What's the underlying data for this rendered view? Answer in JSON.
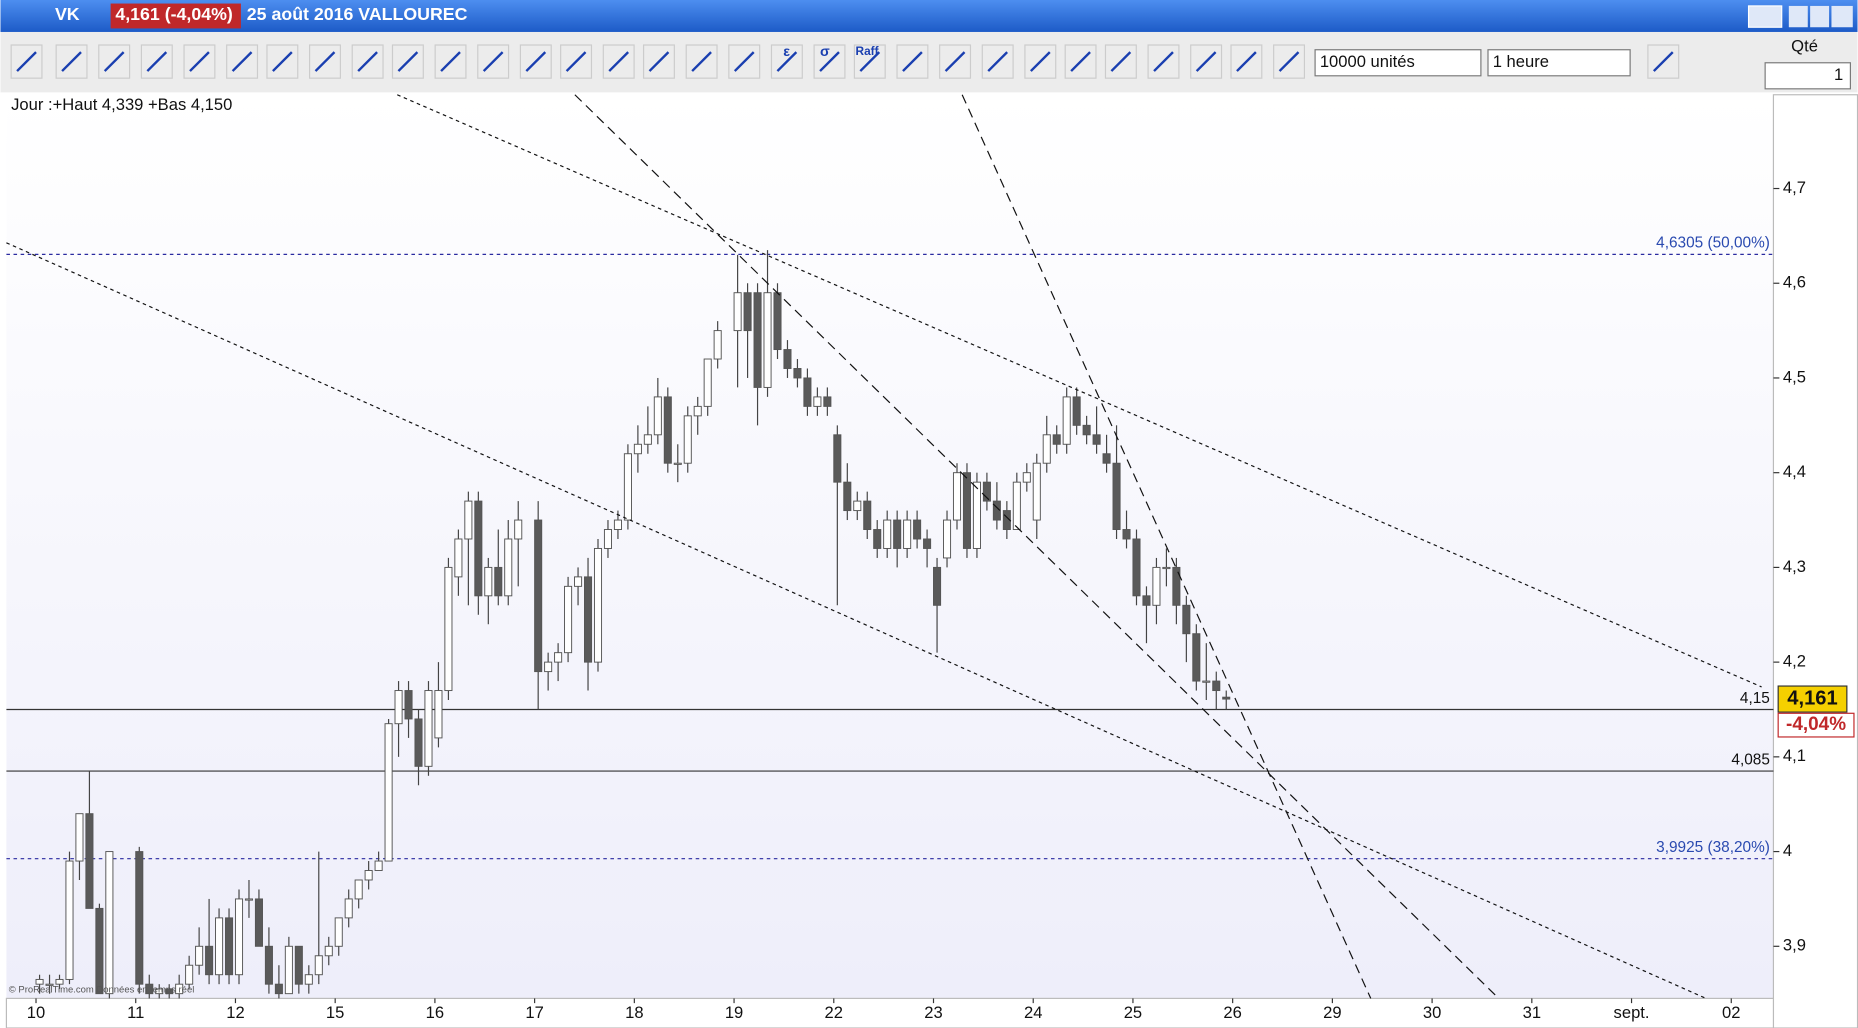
{
  "ui": {
    "symbol": "VK",
    "quote": "4,161 (-4,04%)",
    "heading": "25 août 2016 VALLOUREC",
    "quantity_select": "10000 unités",
    "period_select": "1 heure",
    "qty_label": "Qté",
    "qty_value": "1",
    "tool_labels": [
      "ε",
      "σ",
      "Raff"
    ],
    "info_line": "Jour :+Haut 4,339 +Bas 4,150",
    "footer": "© ProRealTime.com  Données en temps réel"
  },
  "chart_data": {
    "type": "candlestick",
    "categories": [
      "10",
      "11",
      "12",
      "15",
      "16",
      "17",
      "18",
      "19",
      "22",
      "23",
      "24",
      "25",
      "26",
      "29",
      "30",
      "31",
      "sept.",
      "02"
    ],
    "ohlc": [
      [
        [
          3.86,
          3.87,
          3.85,
          3.865
        ],
        [
          3.86,
          3.87,
          3.85,
          3.86
        ],
        [
          3.86,
          3.87,
          3.855,
          3.865
        ],
        [
          3.865,
          4.0,
          3.86,
          3.99
        ],
        [
          3.99,
          4.04,
          3.97,
          4.04
        ],
        [
          4.04,
          4.085,
          3.94,
          3.94
        ],
        [
          3.94,
          3.945,
          3.85,
          3.85
        ],
        [
          3.85,
          4.0,
          3.845,
          4.0
        ]
      ],
      [
        [
          4.0,
          4.005,
          3.85,
          3.86
        ],
        [
          3.86,
          3.87,
          3.845,
          3.85
        ],
        [
          3.85,
          3.86,
          3.845,
          3.855
        ],
        [
          3.855,
          3.86,
          3.845,
          3.85
        ],
        [
          3.85,
          3.87,
          3.845,
          3.86
        ],
        [
          3.86,
          3.89,
          3.855,
          3.88
        ],
        [
          3.88,
          3.92,
          3.87,
          3.9
        ],
        [
          3.9,
          3.95,
          3.86,
          3.87
        ],
        [
          3.87,
          3.94,
          3.86,
          3.93
        ],
        [
          3.93,
          3.94,
          3.86,
          3.87
        ]
      ],
      [
        [
          3.87,
          3.96,
          3.86,
          3.95
        ],
        [
          3.95,
          3.97,
          3.93,
          3.95
        ],
        [
          3.95,
          3.96,
          3.9,
          3.9
        ],
        [
          3.9,
          3.92,
          3.85,
          3.86
        ],
        [
          3.86,
          3.88,
          3.845,
          3.85
        ],
        [
          3.85,
          3.91,
          3.85,
          3.9
        ],
        [
          3.9,
          3.9,
          3.85,
          3.86
        ],
        [
          3.86,
          3.88,
          3.85,
          3.87
        ],
        [
          3.87,
          4.0,
          3.86,
          3.89
        ],
        [
          3.89,
          3.91,
          3.88,
          3.9
        ]
      ],
      [
        [
          3.9,
          3.93,
          3.89,
          3.93
        ],
        [
          3.93,
          3.96,
          3.92,
          3.95
        ],
        [
          3.95,
          3.97,
          3.94,
          3.97
        ],
        [
          3.97,
          3.99,
          3.96,
          3.98
        ],
        [
          3.98,
          4.0,
          3.98,
          3.99
        ],
        [
          3.99,
          4.14,
          3.99,
          4.135
        ],
        [
          4.135,
          4.18,
          4.1,
          4.17
        ],
        [
          4.17,
          4.18,
          4.12,
          4.14
        ],
        [
          4.14,
          4.15,
          4.07,
          4.09
        ],
        [
          4.09,
          4.18,
          4.08,
          4.17
        ]
      ],
      [
        [
          4.12,
          4.2,
          4.11,
          4.17
        ],
        [
          4.17,
          4.31,
          4.16,
          4.3
        ],
        [
          4.29,
          4.34,
          4.27,
          4.33
        ],
        [
          4.33,
          4.38,
          4.26,
          4.37
        ],
        [
          4.37,
          4.38,
          4.25,
          4.27
        ],
        [
          4.27,
          4.31,
          4.24,
          4.3
        ],
        [
          4.3,
          4.34,
          4.26,
          4.27
        ],
        [
          4.27,
          4.35,
          4.26,
          4.33
        ],
        [
          4.33,
          4.37,
          4.28,
          4.35
        ]
      ],
      [
        [
          4.35,
          4.37,
          4.15,
          4.19
        ],
        [
          4.19,
          4.21,
          4.17,
          4.2
        ],
        [
          4.2,
          4.22,
          4.18,
          4.21
        ],
        [
          4.21,
          4.29,
          4.2,
          4.28
        ],
        [
          4.28,
          4.3,
          4.26,
          4.29
        ],
        [
          4.29,
          4.31,
          4.17,
          4.2
        ],
        [
          4.2,
          4.33,
          4.19,
          4.32
        ],
        [
          4.32,
          4.35,
          4.31,
          4.34
        ],
        [
          4.34,
          4.36,
          4.33,
          4.35
        ],
        [
          4.35,
          4.43,
          4.34,
          4.42
        ]
      ],
      [
        [
          4.42,
          4.45,
          4.4,
          4.43
        ],
        [
          4.43,
          4.47,
          4.42,
          4.44
        ],
        [
          4.44,
          4.5,
          4.43,
          4.48
        ],
        [
          4.48,
          4.49,
          4.4,
          4.41
        ],
        [
          4.41,
          4.43,
          4.39,
          4.41
        ],
        [
          4.41,
          4.47,
          4.4,
          4.46
        ],
        [
          4.46,
          4.48,
          4.44,
          4.47
        ],
        [
          4.47,
          4.52,
          4.46,
          4.52
        ],
        [
          4.52,
          4.56,
          4.51,
          4.55
        ]
      ],
      [
        [
          4.55,
          4.63,
          4.49,
          4.59
        ],
        [
          4.59,
          4.6,
          4.5,
          4.55
        ],
        [
          4.59,
          4.6,
          4.45,
          4.49
        ],
        [
          4.49,
          4.635,
          4.48,
          4.59
        ],
        [
          4.59,
          4.6,
          4.52,
          4.53
        ],
        [
          4.53,
          4.54,
          4.5,
          4.51
        ],
        [
          4.51,
          4.52,
          4.49,
          4.5
        ],
        [
          4.5,
          4.51,
          4.46,
          4.47
        ],
        [
          4.47,
          4.49,
          4.46,
          4.48
        ],
        [
          4.48,
          4.49,
          4.46,
          4.47
        ]
      ],
      [
        [
          4.44,
          4.45,
          4.26,
          4.39
        ],
        [
          4.39,
          4.41,
          4.35,
          4.36
        ],
        [
          4.36,
          4.38,
          4.35,
          4.37
        ],
        [
          4.37,
          4.38,
          4.33,
          4.34
        ],
        [
          4.34,
          4.35,
          4.31,
          4.32
        ],
        [
          4.32,
          4.36,
          4.31,
          4.35
        ],
        [
          4.35,
          4.36,
          4.3,
          4.32
        ],
        [
          4.32,
          4.36,
          4.31,
          4.35
        ],
        [
          4.35,
          4.36,
          4.32,
          4.33
        ],
        [
          4.33,
          4.34,
          4.3,
          4.32
        ]
      ],
      [
        [
          4.3,
          4.31,
          4.21,
          4.26
        ],
        [
          4.31,
          4.36,
          4.3,
          4.35
        ],
        [
          4.35,
          4.41,
          4.34,
          4.4
        ],
        [
          4.4,
          4.41,
          4.31,
          4.32
        ],
        [
          4.32,
          4.4,
          4.31,
          4.39
        ],
        [
          4.39,
          4.4,
          4.36,
          4.37
        ],
        [
          4.37,
          4.39,
          4.34,
          4.35
        ],
        [
          4.36,
          4.37,
          4.33,
          4.34
        ],
        [
          4.34,
          4.4,
          4.34,
          4.39
        ],
        [
          4.39,
          4.41,
          4.38,
          4.4
        ]
      ],
      [
        [
          4.35,
          4.42,
          4.33,
          4.41
        ],
        [
          4.41,
          4.46,
          4.4,
          4.44
        ],
        [
          4.44,
          4.45,
          4.42,
          4.43
        ],
        [
          4.43,
          4.49,
          4.42,
          4.48
        ],
        [
          4.48,
          4.49,
          4.44,
          4.45
        ],
        [
          4.45,
          4.46,
          4.43,
          4.44
        ],
        [
          4.44,
          4.47,
          4.42,
          4.43
        ],
        [
          4.42,
          4.44,
          4.4,
          4.41
        ],
        [
          4.41,
          4.45,
          4.33,
          4.34
        ],
        [
          4.34,
          4.36,
          4.32,
          4.33
        ]
      ],
      [
        [
          4.33,
          4.34,
          4.26,
          4.27
        ],
        [
          4.27,
          4.28,
          4.22,
          4.26
        ],
        [
          4.26,
          4.31,
          4.24,
          4.3
        ],
        [
          4.3,
          4.32,
          4.28,
          4.3
        ],
        [
          4.3,
          4.31,
          4.24,
          4.26
        ],
        [
          4.26,
          4.27,
          4.2,
          4.23
        ],
        [
          4.23,
          4.24,
          4.17,
          4.18
        ],
        [
          4.18,
          4.22,
          4.16,
          4.18
        ],
        [
          4.18,
          4.19,
          4.15,
          4.17
        ],
        [
          4.163,
          4.17,
          4.15,
          4.161
        ]
      ],
      [],
      [],
      [],
      [],
      [],
      []
    ],
    "up_color": "#ffffff",
    "down_color": "#5a5a5a",
    "wick_color": "#444444",
    "ylim": [
      3.845,
      4.799
    ],
    "yticks": [
      {
        "value": 3.9,
        "label": "3,9"
      },
      4,
      {
        "value": 4.1,
        "label": "4,1"
      },
      {
        "value": 4.2,
        "label": "4,2"
      },
      {
        "value": 4.3,
        "label": "4,3"
      },
      {
        "value": 4.4,
        "label": "4,4"
      },
      {
        "value": 4.5,
        "label": "4,5"
      },
      {
        "value": 4.6,
        "label": "4,6"
      },
      {
        "value": 4.7,
        "label": "4,7"
      }
    ],
    "levels": [
      {
        "value": 4.6305,
        "label": "4,6305 (50,00%)",
        "style": "dotted",
        "color": "#2a2aa0"
      },
      {
        "value": 4.15,
        "label": "4,15",
        "style": "solid",
        "color": "#333333"
      },
      {
        "value": 4.085,
        "label": "4,085",
        "style": "solid",
        "color": "#333333"
      },
      {
        "value": 3.9925,
        "label": "3,9925 (38,20%)",
        "style": "dotted",
        "color": "#2a2aa0"
      }
    ],
    "last_price": {
      "value": 4.161,
      "label": "4,161"
    },
    "change_label": "-4,04%"
  }
}
